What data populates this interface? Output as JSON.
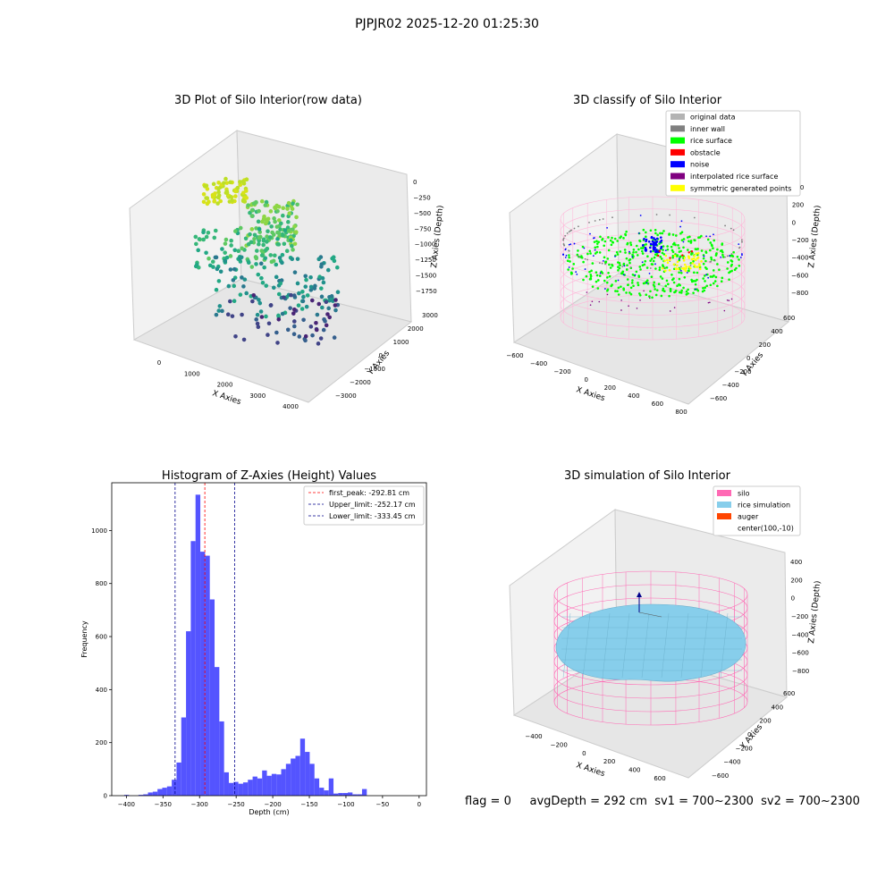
{
  "suptitle": "PJPJR02 2025-12-20 01:25:30",
  "status_line": {
    "flag": "flag = 0",
    "avg_depth": "avgDepth = 292 cm",
    "sv1": "sv1 = 700~2300",
    "sv2": "sv2 = 700~2300"
  },
  "chart_data": [
    {
      "id": "raw",
      "type": "scatter",
      "projection": "3d",
      "title": "3D Plot of Silo Interior(row data)",
      "xlabel": "X Axies",
      "ylabel": "Y Axies",
      "zlabel": "Z Axies (Depth)",
      "xticks": [
        "0",
        "1000",
        "2000",
        "3000",
        "4000"
      ],
      "yticks": [
        "−3000",
        "−2000",
        "−1000",
        "0",
        "1000",
        "2000",
        "3000"
      ],
      "zticks": [
        "−1750",
        "−1500",
        "−1250",
        "−1000",
        "−750",
        "−500",
        "−250",
        "0"
      ],
      "xlim": [
        -500,
        4300
      ],
      "ylim": [
        -3300,
        3300
      ],
      "zlim": [
        -1900,
        100
      ],
      "colormap": "viridis (by depth)"
    },
    {
      "id": "classify",
      "type": "scatter",
      "projection": "3d",
      "title": "3D classify of Silo Interior",
      "xlabel": "X Axies",
      "ylabel": "Y Axies",
      "zlabel": "Z Axies (Depth)",
      "xticks": [
        "−600",
        "−400",
        "−200",
        "0",
        "200",
        "400",
        "600",
        "800"
      ],
      "yticks": [
        "−600",
        "−400",
        "−200",
        "0",
        "200",
        "400",
        "600"
      ],
      "zticks": [
        "−800",
        "−600",
        "−400",
        "−200",
        "0",
        "200",
        "400"
      ],
      "legend_position": "top-right",
      "legend": [
        {
          "label": "original data",
          "color": "#b3b3b3"
        },
        {
          "label": "inner wall",
          "color": "#808080"
        },
        {
          "label": "rice surface",
          "color": "#00ff00"
        },
        {
          "label": "obstacle",
          "color": "#ff0000"
        },
        {
          "label": "noise",
          "color": "#0000ff"
        },
        {
          "label": "interpolated rice surface",
          "color": "#800080"
        },
        {
          "label": "symmetric generated points",
          "color": "#ffff00"
        }
      ]
    },
    {
      "id": "hist",
      "type": "bar",
      "title": "Histogram of Z-Axies (Height) Values",
      "xlabel": "Depth (cm)",
      "ylabel": "Frequency",
      "xlim": [
        -420,
        10
      ],
      "ylim": [
        0,
        1180
      ],
      "xticks": [
        -400,
        -350,
        -300,
        -250,
        -200,
        -150,
        -100,
        -50,
        0
      ],
      "yticks": [
        0,
        200,
        400,
        600,
        800,
        1000
      ],
      "bar_color": "#4b4bff",
      "bin_width": 6.5,
      "bins": [
        [
          -403.0,
          3
        ],
        [
          -383.5,
          3
        ],
        [
          -377.0,
          5
        ],
        [
          -370.5,
          12
        ],
        [
          -364.0,
          15
        ],
        [
          -357.5,
          25
        ],
        [
          -351.0,
          30
        ],
        [
          -344.5,
          35
        ],
        [
          -338.0,
          60
        ],
        [
          -331.5,
          125
        ],
        [
          -325.0,
          295
        ],
        [
          -318.5,
          620
        ],
        [
          -312.0,
          960
        ],
        [
          -305.5,
          1135
        ],
        [
          -299.0,
          920
        ],
        [
          -292.5,
          905
        ],
        [
          -286.0,
          740
        ],
        [
          -279.5,
          485
        ],
        [
          -273.0,
          280
        ],
        [
          -266.5,
          88
        ],
        [
          -260.0,
          48
        ],
        [
          -253.5,
          52
        ],
        [
          -247.0,
          45
        ],
        [
          -240.5,
          50
        ],
        [
          -234.0,
          60
        ],
        [
          -227.5,
          72
        ],
        [
          -221.0,
          65
        ],
        [
          -214.5,
          95
        ],
        [
          -208.0,
          75
        ],
        [
          -201.5,
          82
        ],
        [
          -195.0,
          80
        ],
        [
          -188.5,
          100
        ],
        [
          -182.0,
          120
        ],
        [
          -175.5,
          140
        ],
        [
          -169.0,
          150
        ],
        [
          -162.5,
          215
        ],
        [
          -156.0,
          165
        ],
        [
          -149.5,
          120
        ],
        [
          -143.0,
          65
        ],
        [
          -136.5,
          30
        ],
        [
          -130.0,
          20
        ],
        [
          -123.5,
          65
        ],
        [
          -117.0,
          8
        ],
        [
          -110.5,
          10
        ],
        [
          -104.0,
          10
        ],
        [
          -97.5,
          12
        ],
        [
          -91.0,
          5
        ],
        [
          -84.5,
          5
        ],
        [
          -78.0,
          25
        ]
      ],
      "vlines": [
        {
          "label": "first_peak: -292.81 cm",
          "x": -292.81,
          "color": "#ff0000"
        },
        {
          "label": "Upper_limit: -252.17 cm",
          "x": -252.17,
          "color": "#00008b"
        },
        {
          "label": "Lower_limit: -333.45 cm",
          "x": -333.45,
          "color": "#00008b"
        }
      ],
      "legend_position": "top-right"
    },
    {
      "id": "sim",
      "type": "scatter",
      "projection": "3d",
      "title": "3D simulation of Silo Interior",
      "xlabel": "X Axies",
      "ylabel": "Y Axies",
      "zlabel": "Z Axies (Depth)",
      "xticks": [
        "−400",
        "−200",
        "0",
        "200",
        "400",
        "600"
      ],
      "yticks": [
        "−600",
        "−400",
        "−200",
        "0",
        "200",
        "400",
        "600"
      ],
      "zticks": [
        "−800",
        "−600",
        "−400",
        "−200",
        "0",
        "200",
        "400"
      ],
      "legend_position": "top-right",
      "legend": [
        {
          "label": "silo",
          "color": "#ff69b4"
        },
        {
          "label": "rice simulation",
          "color": "#87ceeb"
        },
        {
          "label": "auger",
          "color": "#ff4500"
        },
        {
          "label": "center(100,-10)",
          "color": ""
        }
      ]
    }
  ]
}
